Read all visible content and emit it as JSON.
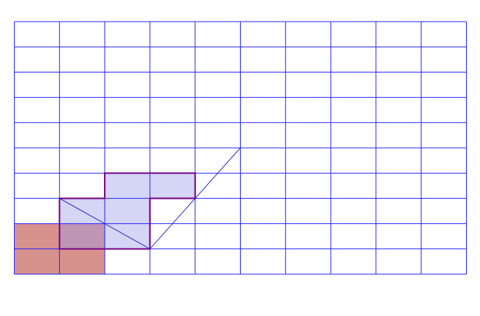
{
  "grid": {
    "columns": 10,
    "rows": 10,
    "line_color": "#1a1aff"
  },
  "shapes": {
    "red_region": {
      "label": "red-shaded-region",
      "fill": "#c8645c",
      "fill_opacity": 0.7,
      "cells": [
        [
          0,
          0
        ],
        [
          1,
          0
        ],
        [
          0,
          1
        ],
        [
          1,
          1
        ]
      ]
    },
    "purple_region": {
      "label": "purple-shaded-region",
      "fill": "#9a9ae6",
      "fill_opacity": 0.42,
      "outline": "#7a0a8a",
      "cells": [
        [
          1,
          1
        ],
        [
          2,
          1
        ],
        [
          1,
          2
        ],
        [
          2,
          2
        ],
        [
          2,
          3
        ],
        [
          3,
          3
        ]
      ]
    }
  },
  "lines": [
    {
      "name": "diagonal-line-a",
      "from": [
        1,
        3
      ],
      "to": [
        3,
        1
      ],
      "color": "#2222cc"
    },
    {
      "name": "diagonal-line-b",
      "from": [
        3,
        1
      ],
      "to": [
        5,
        5
      ],
      "color": "#2222cc"
    }
  ]
}
